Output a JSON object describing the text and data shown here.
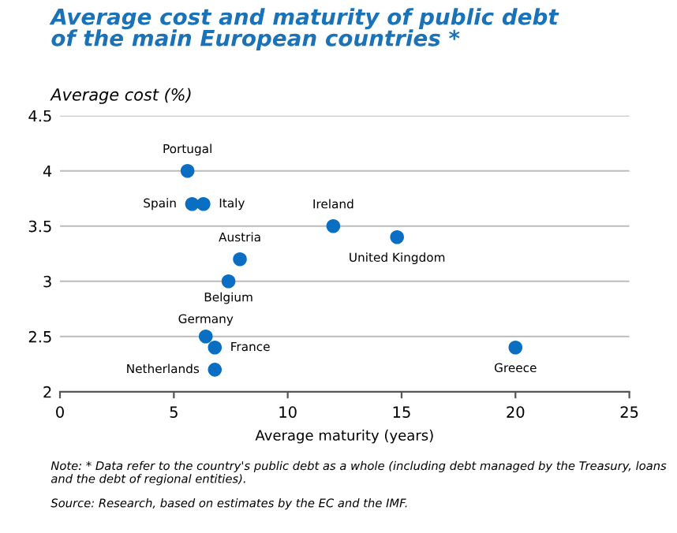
{
  "chart_data": {
    "type": "scatter",
    "title": "Average cost and maturity of public debt\nof the main European countries *",
    "ylabel": "Average cost (%)",
    "xlabel": "Average maturity (years)",
    "x": [
      5.6,
      5.8,
      6.3,
      12.0,
      14.8,
      7.9,
      7.4,
      6.4,
      6.8,
      6.8,
      20.0
    ],
    "series": [
      {
        "color": "#0a6fc2",
        "values": [
          4.0,
          3.7,
          3.7,
          3.5,
          3.4,
          3.2,
          3.0,
          2.5,
          2.4,
          2.2,
          2.4
        ]
      }
    ],
    "marker": "circle",
    "grid": "y",
    "xlim": [
      0,
      25
    ],
    "xticks": [
      0,
      5,
      10,
      15,
      20,
      25
    ],
    "ylim": [
      2,
      4.5
    ],
    "yticks": [
      2,
      2.5,
      3,
      3.5,
      4,
      4.5
    ],
    "annotations": [
      {
        "text": "Portugal",
        "x": 5.6,
        "y": 4.0
      },
      {
        "text": "Spain",
        "x": 5.8,
        "y": 3.7
      },
      {
        "text": "Italy",
        "x": 6.3,
        "y": 3.7
      },
      {
        "text": "Ireland",
        "x": 12.0,
        "y": 3.5
      },
      {
        "text": "United Kingdom",
        "x": 14.8,
        "y": 3.4
      },
      {
        "text": "Austria",
        "x": 7.9,
        "y": 3.2
      },
      {
        "text": "Belgium",
        "x": 7.4,
        "y": 3.0
      },
      {
        "text": "Germany",
        "x": 6.4,
        "y": 2.5
      },
      {
        "text": "France",
        "x": 6.8,
        "y": 2.4
      },
      {
        "text": "Netherlands",
        "x": 6.8,
        "y": 2.2
      },
      {
        "text": "Greece",
        "x": 20.0,
        "y": 2.4
      },
      "Note: * Data refer to the country's public debt as a whole (including debt managed by the Treasury, loans and the debt of regional entities).",
      "Source: Research, based on estimates by the EC and the IMF."
    ]
  }
}
